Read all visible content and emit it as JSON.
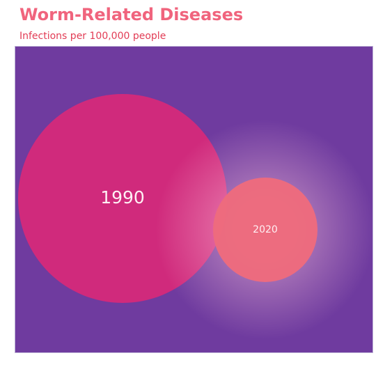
{
  "title": "Worm-Related Diseases",
  "subtitle": "Infections per 100,000 people",
  "colors": {
    "title": "#f0647d",
    "subtitle": "#e23c55",
    "background": "#6f3b9f",
    "bubble_1990": "#d5297a",
    "bubble_2020": "#ee6b7d",
    "glow": "#ffc8dc",
    "label": "#fff0f4"
  },
  "chart_data": {
    "type": "bubble",
    "title": "Worm-Related Diseases",
    "subtitle": "Infections per 100,000 people",
    "legend": "none",
    "grid": false,
    "series": [
      {
        "name": "1990",
        "relative_size": 1.0,
        "label": "1990"
      },
      {
        "name": "2020",
        "relative_size": 0.5,
        "label": "2020"
      }
    ]
  }
}
